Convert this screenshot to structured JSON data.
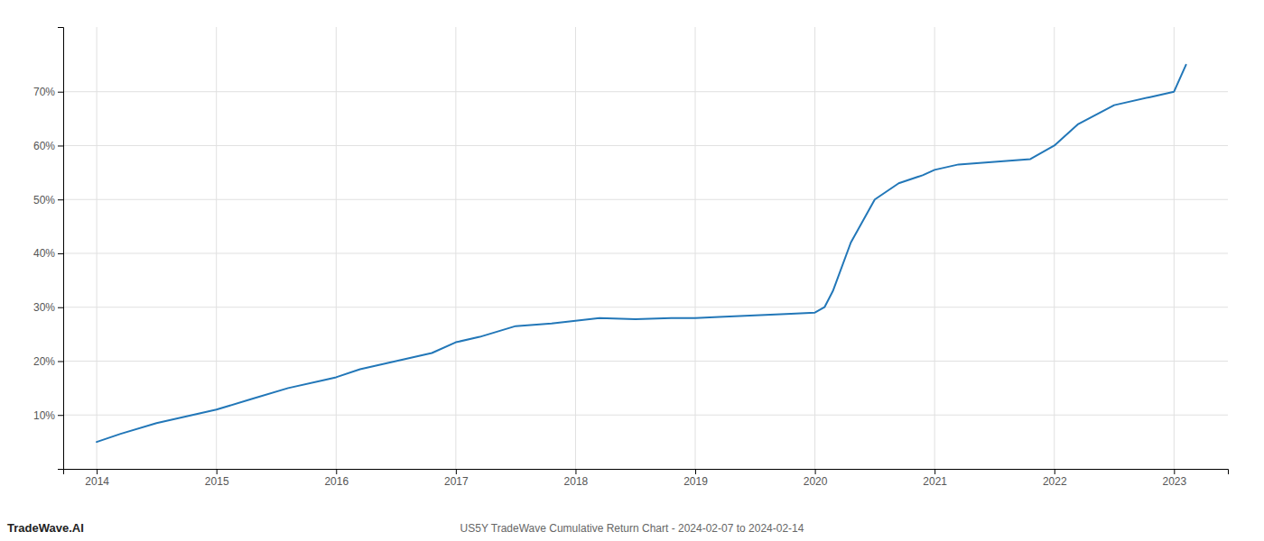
{
  "chart_data": {
    "type": "line",
    "title": "US5Y TradeWave Cumulative Return Chart - 2024-02-07 to 2024-02-14",
    "annotations": [
      {
        "text": "TradeWave.AI"
      }
    ],
    "x": [
      2014.0,
      2014.2,
      2014.5,
      2014.8,
      2015.0,
      2015.3,
      2015.6,
      2015.9,
      2016.0,
      2016.2,
      2016.5,
      2016.8,
      2017.0,
      2017.2,
      2017.5,
      2017.8,
      2018.0,
      2018.2,
      2018.5,
      2018.8,
      2019.0,
      2019.2,
      2019.5,
      2019.8,
      2020.0,
      2020.08,
      2020.15,
      2020.3,
      2020.5,
      2020.7,
      2020.9,
      2021.0,
      2021.2,
      2021.5,
      2021.8,
      2022.0,
      2022.2,
      2022.5,
      2022.8,
      2023.0,
      2023.1
    ],
    "values": [
      5.0,
      6.5,
      8.5,
      10.0,
      11.0,
      13.0,
      15.0,
      16.5,
      17.0,
      18.5,
      20.0,
      21.5,
      23.5,
      24.5,
      26.5,
      27.0,
      27.5,
      28.0,
      27.8,
      28.0,
      28.0,
      28.2,
      28.5,
      28.8,
      29.0,
      30.0,
      33.0,
      42.0,
      50.0,
      53.0,
      54.5,
      55.5,
      56.5,
      57.0,
      57.5,
      60.0,
      64.0,
      67.5,
      69.0,
      70.0,
      75.0
    ],
    "color": "#2277b8",
    "xlim": [
      2013.72,
      2023.45
    ],
    "ylim": [
      0,
      82
    ],
    "xticks": [
      2014,
      2015,
      2016,
      2017,
      2018,
      2019,
      2020,
      2021,
      2022,
      2023
    ],
    "yticks": [
      {
        "value": 10,
        "label": "10%"
      },
      {
        "value": 20,
        "label": "20%"
      },
      {
        "value": 30,
        "label": "30%"
      },
      {
        "value": 40,
        "label": "40%"
      },
      {
        "value": 50,
        "label": "50%"
      },
      {
        "value": 60,
        "label": "60%"
      },
      {
        "value": 70,
        "label": "70%"
      }
    ],
    "grid": true
  }
}
